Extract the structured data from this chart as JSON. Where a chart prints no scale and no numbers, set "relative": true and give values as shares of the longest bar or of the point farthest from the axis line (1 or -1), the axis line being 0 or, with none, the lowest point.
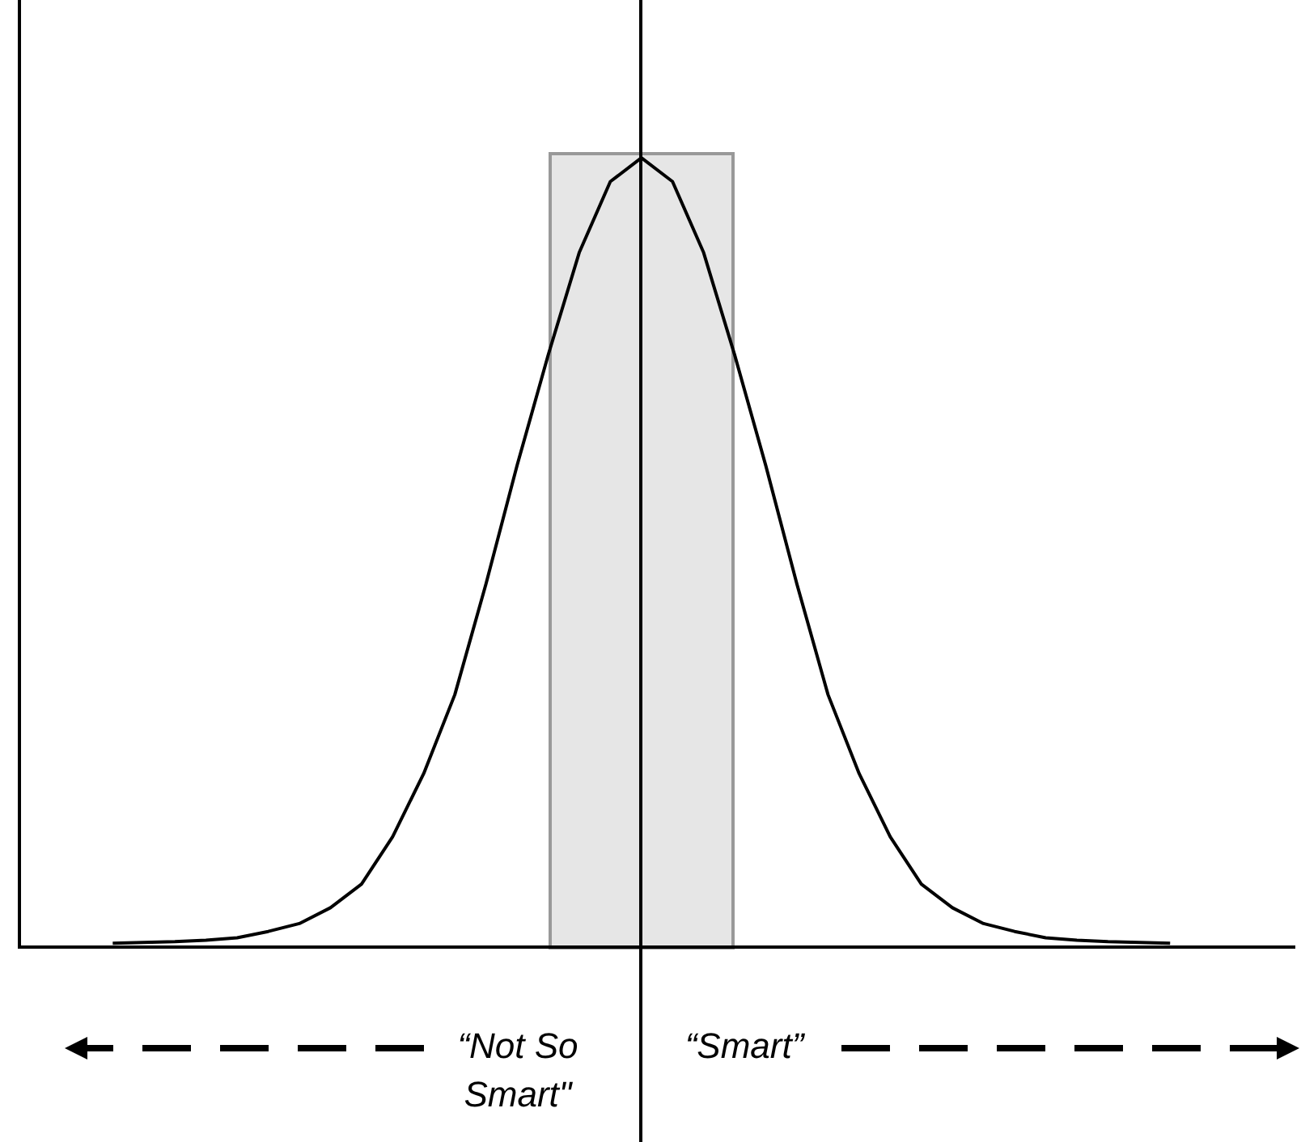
{
  "chart_data": {
    "type": "line",
    "relative": true,
    "categories": [
      null,
      null,
      null,
      null,
      null,
      null,
      null,
      null,
      null,
      null,
      null,
      null,
      null,
      null,
      null,
      null,
      null,
      null,
      null,
      null,
      null,
      null,
      null,
      null,
      null,
      null,
      null,
      null,
      null,
      null,
      null,
      null,
      null,
      null,
      null,
      null,
      null,
      null,
      null,
      null,
      null,
      null
    ],
    "series": [
      {
        "color": "#000000",
        "values": [
          null,
          null,
          null,
          0.005,
          0.006,
          0.007,
          0.009,
          0.012,
          0.02,
          0.03,
          0.05,
          0.08,
          0.14,
          0.22,
          0.32,
          0.46,
          0.61,
          0.75,
          0.88,
          0.97,
          1,
          0.97,
          0.88,
          0.75,
          0.61,
          0.46,
          0.32,
          0.22,
          0.14,
          0.08,
          0.05,
          0.03,
          0.02,
          0.012,
          0.009,
          0.007,
          0.006,
          0.005,
          null,
          null,
          null,
          null
        ]
      }
    ],
    "grid": false,
    "legend": false,
    "marker": "none",
    "line_style": "solid",
    "annotations": [
      "“Not So Smart\"",
      "“Smart”"
    ]
  }
}
